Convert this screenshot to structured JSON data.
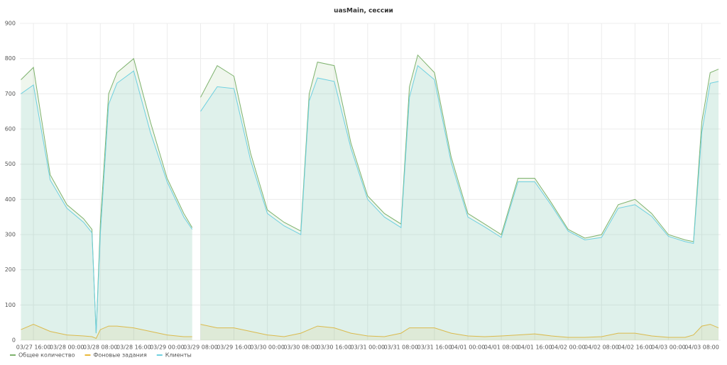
{
  "chart_data": {
    "type": "line",
    "title": "uasMain, сессии",
    "x": [
      "03/27 13:00",
      "03/27 16:00",
      "03/27 20:00",
      "03/28 00:00",
      "03/28 04:00",
      "03/28 06:00",
      "03/28 07:00",
      "03/28 08:00",
      "03/28 10:00",
      "03/28 12:00",
      "03/28 16:00",
      "03/28 20:00",
      "03/29 00:00",
      "03/29 04:00",
      "03/29 06:00",
      "03/29 07:00",
      "03/29 08:00",
      "03/29 12:00",
      "03/29 16:00",
      "03/29 20:00",
      "03/30 00:00",
      "03/30 04:00",
      "03/30 08:00",
      "03/30 10:00",
      "03/30 12:00",
      "03/30 16:00",
      "03/30 20:00",
      "03/31 00:00",
      "03/31 04:00",
      "03/31 08:00",
      "03/31 10:00",
      "03/31 12:00",
      "03/31 16:00",
      "03/31 20:00",
      "04/01 00:00",
      "04/01 04:00",
      "04/01 08:00",
      "04/01 12:00",
      "04/01 16:00",
      "04/01 20:00",
      "04/02 00:00",
      "04/02 04:00",
      "04/02 08:00",
      "04/02 12:00",
      "04/02 16:00",
      "04/02 20:00",
      "04/03 00:00",
      "04/03 04:00",
      "04/03 06:00",
      "04/03 08:00",
      "04/03 10:00",
      "04/03 12:00"
    ],
    "series": [
      {
        "name": "Общее количество",
        "color": "#7eb26d",
        "values": [
          740,
          775,
          470,
          385,
          345,
          315,
          20,
          330,
          700,
          760,
          800,
          620,
          460,
          360,
          320,
          null,
          690,
          780,
          750,
          530,
          370,
          335,
          310,
          700,
          790,
          780,
          560,
          410,
          360,
          330,
          720,
          810,
          760,
          520,
          360,
          330,
          300,
          460,
          460,
          390,
          315,
          290,
          300,
          385,
          400,
          360,
          300,
          285,
          280,
          620,
          760,
          770
        ]
      },
      {
        "name": "Фоновые задания",
        "color": "#eab839",
        "values": [
          30,
          45,
          25,
          15,
          12,
          10,
          5,
          30,
          40,
          40,
          35,
          25,
          15,
          10,
          10,
          null,
          45,
          35,
          35,
          25,
          15,
          10,
          20,
          30,
          40,
          35,
          20,
          12,
          10,
          20,
          35,
          35,
          35,
          20,
          12,
          10,
          12,
          15,
          18,
          12,
          8,
          8,
          10,
          20,
          20,
          12,
          8,
          8,
          15,
          40,
          45,
          35
        ]
      },
      {
        "name": "Клиенты",
        "color": "#6ed0e0",
        "values": [
          700,
          725,
          455,
          375,
          335,
          305,
          20,
          300,
          670,
          730,
          765,
          590,
          450,
          350,
          315,
          null,
          650,
          720,
          715,
          510,
          360,
          325,
          300,
          680,
          745,
          735,
          545,
          400,
          350,
          320,
          690,
          780,
          740,
          505,
          350,
          322,
          292,
          450,
          450,
          383,
          310,
          285,
          292,
          375,
          385,
          352,
          295,
          280,
          275,
          590,
          730,
          735
        ]
      }
    ],
    "xlim": [
      "03/27 12:45",
      "04/03 12:30"
    ],
    "xticks": [
      "03/27 16:00",
      "03/28 00:00",
      "03/28 08:00",
      "03/28 16:00",
      "03/29 00:00",
      "03/29 08:00",
      "03/29 16:00",
      "03/30 00:00",
      "03/30 08:00",
      "03/30 16:00",
      "03/31 00:00",
      "03/31 08:00",
      "03/31 16:00",
      "04/01 00:00",
      "04/01 08:00",
      "04/01 16:00",
      "04/02 00:00",
      "04/02 08:00",
      "04/02 16:00",
      "04/03 00:00",
      "04/03 08:00"
    ],
    "ylim": [
      0,
      900
    ],
    "yticks": [
      0,
      100,
      200,
      300,
      400,
      500,
      600,
      700,
      800,
      900
    ],
    "grid": true,
    "legend": "bottom-left"
  }
}
